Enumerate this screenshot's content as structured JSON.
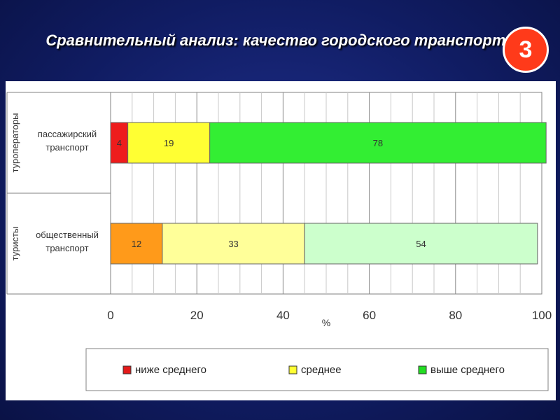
{
  "title": "Сравнительный анализ: качество городского транспорта",
  "badge": "3",
  "chart_data": {
    "type": "bar",
    "orientation": "horizontal",
    "stacked": true,
    "x_unit_label": "%",
    "xlim": [
      0,
      100
    ],
    "x_ticks": [
      0,
      20,
      40,
      60,
      80,
      100
    ],
    "grid": true,
    "legend_position": "bottom",
    "groups": [
      {
        "group": "туроператоры",
        "category": "пассажирский транспорт",
        "category_lines": [
          "пассажирский",
          "транспорт"
        ]
      },
      {
        "group": "туристы",
        "category": "общественный транспорт",
        "category_lines": [
          "общественный",
          "транспорт"
        ]
      }
    ],
    "series": [
      {
        "name": "ниже среднего",
        "values": [
          4,
          12
        ],
        "colors": [
          "#ee1c1c",
          "#ff9a1a"
        ],
        "legend_color": "#e31a1a"
      },
      {
        "name": "среднее",
        "values": [
          19,
          33
        ],
        "colors": [
          "#ffff33",
          "#ffff99"
        ],
        "legend_color": "#ffff33"
      },
      {
        "name": "выше среднего",
        "values": [
          78,
          54
        ],
        "colors": [
          "#33ee33",
          "#ccffcc"
        ],
        "legend_color": "#22dd22"
      }
    ]
  }
}
